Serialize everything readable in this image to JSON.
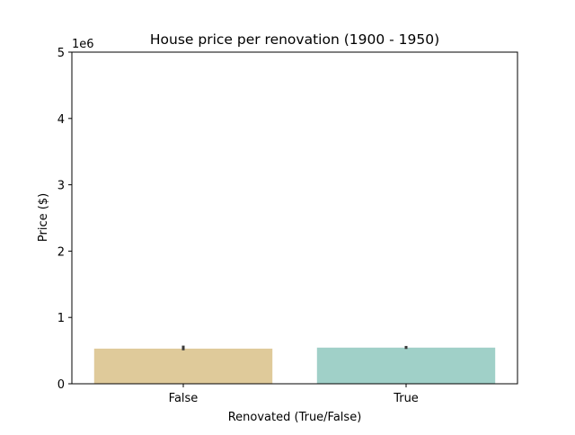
{
  "chart_data": {
    "type": "bar",
    "title": "House price per renovation (1900 - 1950)",
    "xlabel": "Renovated (True/False)",
    "ylabel": "Price ($)",
    "y_scale_label": "1e6",
    "ylim": [
      0,
      5000000
    ],
    "y_ticks": [
      0,
      1000000,
      2000000,
      3000000,
      4000000,
      5000000
    ],
    "y_tick_labels": [
      "0",
      "1",
      "2",
      "3",
      "4",
      "5"
    ],
    "categories": [
      "False",
      "True"
    ],
    "values": [
      530000,
      545000
    ],
    "error_bars": [
      {
        "low": 505000,
        "high": 575000
      },
      {
        "low": 525000,
        "high": 570000
      }
    ],
    "colors": [
      "#dfca9a",
      "#a0d0c8"
    ],
    "grid": false,
    "legend": "none"
  }
}
